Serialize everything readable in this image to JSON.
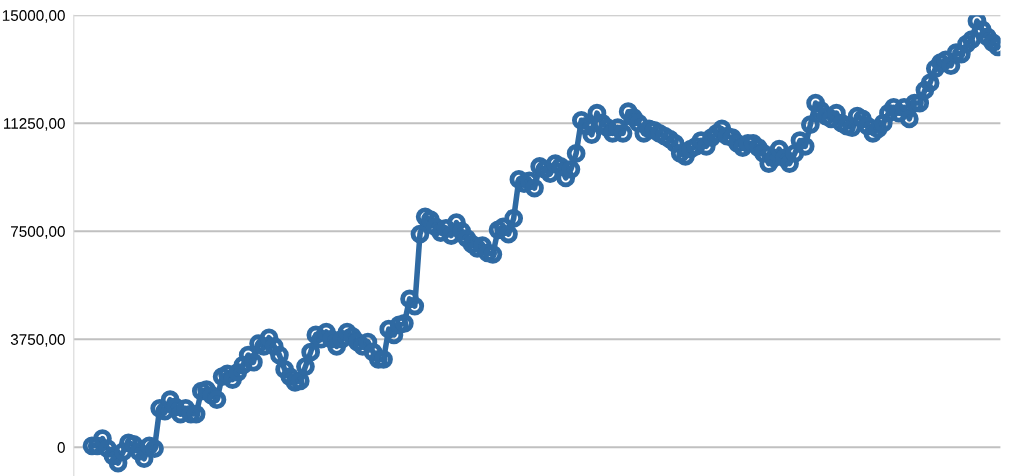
{
  "chart_data": {
    "type": "line",
    "ylim": [
      -1000,
      15000
    ],
    "yticks": [
      {
        "value": 0,
        "label": "0"
      },
      {
        "value": 3750,
        "label": "3750,00"
      },
      {
        "value": 7500,
        "label": "7500,00"
      },
      {
        "value": 11250,
        "label": "11250,00"
      },
      {
        "value": 15000,
        "label": "15000,00"
      }
    ],
    "grid": "y",
    "marker": "circle",
    "line_style": "solid",
    "series": [
      {
        "color": "#2f6aa3",
        "values": [
          50,
          50,
          300,
          -50,
          -300,
          -550,
          -150,
          150,
          100,
          -150,
          -400,
          50,
          -50,
          1350,
          1250,
          1650,
          1400,
          1150,
          1350,
          1150,
          1150,
          1950,
          2000,
          1800,
          1650,
          2450,
          2550,
          2350,
          2600,
          2850,
          3200,
          2950,
          3600,
          3500,
          3800,
          3500,
          3200,
          2700,
          2450,
          2250,
          2300,
          2800,
          3300,
          3900,
          3750,
          4000,
          3750,
          3500,
          3750,
          4000,
          3850,
          3650,
          3500,
          3650,
          3300,
          3050,
          3050,
          4100,
          3900,
          4250,
          4300,
          5150,
          4900,
          7400,
          8000,
          7900,
          7650,
          7450,
          7600,
          7350,
          7800,
          7500,
          7250,
          7050,
          6900,
          7000,
          6750,
          6700,
          7550,
          7650,
          7400,
          7950,
          9300,
          9150,
          9250,
          9000,
          9750,
          9650,
          9500,
          9850,
          9750,
          9350,
          9650,
          10200,
          11350,
          11150,
          10850,
          11600,
          11250,
          11100,
          10900,
          11100,
          10900,
          11650,
          11450,
          11250,
          10900,
          11050,
          11000,
          10900,
          10800,
          10700,
          10550,
          10200,
          10100,
          10350,
          10450,
          10650,
          10450,
          10750,
          10900,
          11050,
          10800,
          10750,
          10550,
          10400,
          10550,
          10550,
          10400,
          10200,
          9850,
          10050,
          10350,
          10050,
          9850,
          10200,
          10650,
          10450,
          11200,
          11950,
          11700,
          11500,
          11400,
          11600,
          11250,
          11150,
          11100,
          11500,
          11400,
          11150,
          10900,
          11050,
          11250,
          11600,
          11800,
          11600,
          11800,
          11400,
          11950,
          11950,
          12400,
          12650,
          13150,
          13350,
          13450,
          13250,
          13700,
          13650,
          14000,
          14150,
          14800,
          14500,
          14250,
          14050,
          13900
        ]
      }
    ]
  }
}
